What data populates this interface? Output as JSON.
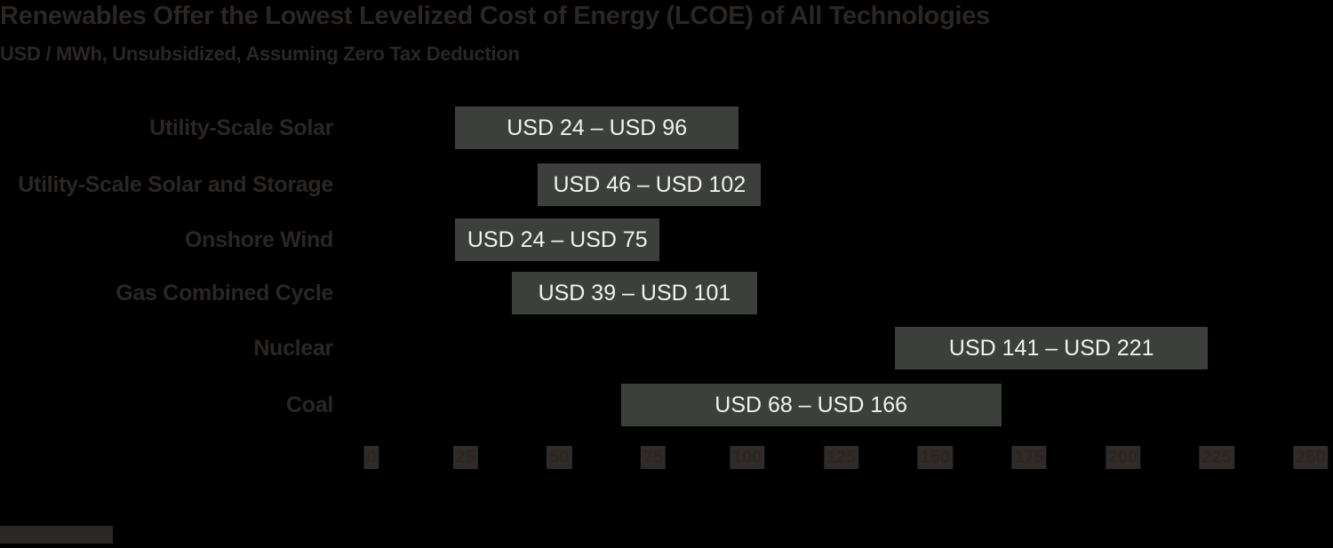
{
  "header": {
    "title": "Renewables Offer the Lowest Levelized Cost of Energy (LCOE) of All Technologies",
    "subtitle": "USD / MWh, Unsubsidized, Assuming Zero Tax Deduction"
  },
  "footer": {
    "source": "Source: Lazard"
  },
  "colors": {
    "background": "#000000",
    "bar": "#3d3f3c",
    "bar_text": "#f2f2ec",
    "label_text": "#2b2622"
  },
  "chart_data": {
    "type": "bar",
    "orientation": "horizontal-range",
    "title": "Renewables Offer the Lowest Levelized Cost of Energy (LCOE) of All Technologies",
    "subtitle": "USD / MWh, Unsubsidized, Assuming Zero Tax Deduction",
    "xlabel": "",
    "ylabel": "",
    "xlim": [
      0,
      250
    ],
    "xticks": [
      "0",
      "25",
      "50",
      "75",
      "100",
      "125",
      "150",
      "175",
      "200",
      "225",
      "250"
    ],
    "grid": false,
    "legend": "none",
    "categories": [
      "Utility-Scale Solar",
      "Utility-Scale Solar and Storage",
      "Onshore Wind",
      "Gas Combined Cycle",
      "Nuclear",
      "Coal"
    ],
    "series": [
      {
        "name": "Low",
        "values": [
          24,
          46,
          24,
          39,
          141,
          68
        ]
      },
      {
        "name": "High",
        "values": [
          96,
          102,
          75,
          101,
          221,
          166
        ]
      }
    ],
    "bar_labels": [
      "USD 24 – USD 96",
      "USD 46 – USD 102",
      "USD 24 – USD 75",
      "USD 39 – USD 101",
      "USD 141 – USD 221",
      "USD 68 – USD 166"
    ],
    "source": "Source: Lazard"
  }
}
